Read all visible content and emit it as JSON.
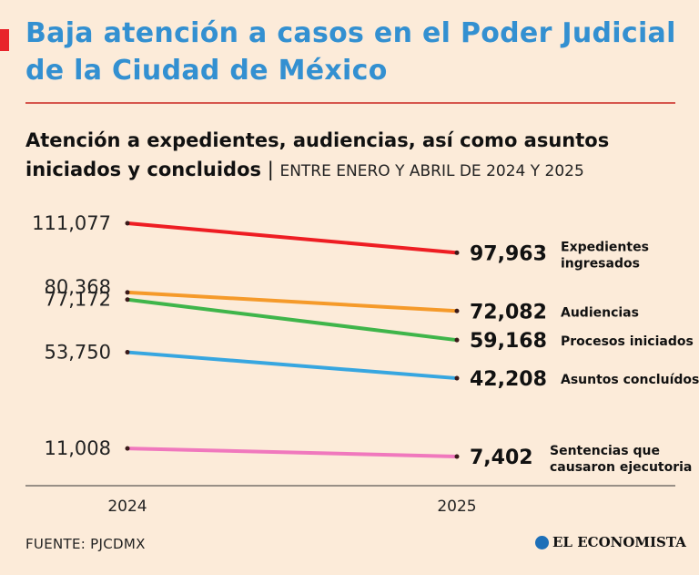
{
  "header": {
    "title": "Baja atención a casos en el Poder Judicial de la Ciudad de México",
    "subtitle_bold": "Atención a expedientes, audiencias, así como asuntos iniciados y concluidos",
    "subtitle_separator": "|",
    "subtitle_period": "ENTRE ENERO Y ABRIL DE 2024 Y 2025"
  },
  "chart_data": {
    "type": "line",
    "categories": [
      "2024",
      "2025"
    ],
    "series": [
      {
        "name": "Expedientes ingresados",
        "values": [
          111077,
          97963
        ],
        "labels": [
          "111,077",
          "97,963"
        ],
        "color": "#ee1d23"
      },
      {
        "name": "Audiencias",
        "values": [
          80368,
          72082
        ],
        "labels": [
          "80,368",
          "72,082"
        ],
        "color": "#f59a2a"
      },
      {
        "name": "Procesos iniciados",
        "values": [
          77172,
          59168
        ],
        "labels": [
          "77,172",
          "59,168"
        ],
        "color": "#3fb54a"
      },
      {
        "name": "Asuntos concluídos",
        "values": [
          53750,
          42208
        ],
        "labels": [
          "53,750",
          "42,208"
        ],
        "color": "#37a6e0"
      },
      {
        "name": "Sentencias que causaron ejecutoria",
        "values": [
          11008,
          7402
        ],
        "labels": [
          "11,008",
          "7,402"
        ],
        "color": "#f078bd"
      }
    ],
    "grid": false,
    "legend": "right"
  },
  "footer": {
    "source": "FUENTE: PJCDMX",
    "brand": "EL ECONOMISTA"
  }
}
